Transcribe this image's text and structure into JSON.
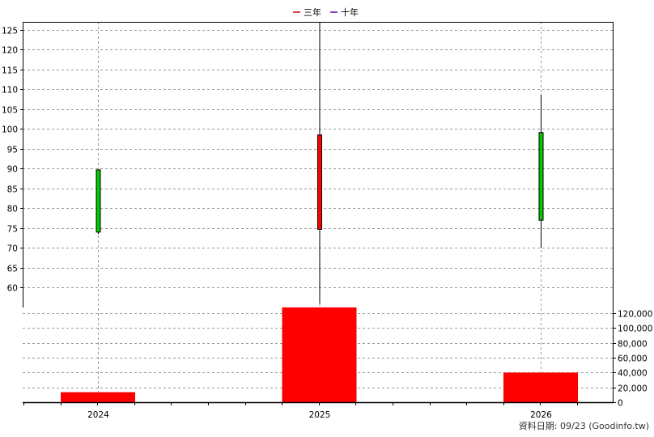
{
  "legend": [
    {
      "label": "三年",
      "color": "#d00000"
    },
    {
      "label": "十年",
      "color": "#6a00a8"
    }
  ],
  "footer_text": "資料日期: 09/23  (Goodinfo.tw)",
  "chart_data": [
    {
      "type": "candlestick",
      "categories": [
        "2024",
        "2025",
        "2026"
      ],
      "ylim": [
        55,
        127
      ],
      "yticks": [
        60,
        65,
        70,
        75,
        80,
        85,
        90,
        95,
        100,
        105,
        110,
        115,
        120,
        125
      ],
      "series": [
        {
          "values": [
            {
              "year": "2024",
              "open": 74,
              "high": 89.7,
              "low": 73.5,
              "close": 89.7,
              "color": "#00cc00"
            },
            {
              "year": "2025",
              "open": 98.5,
              "high": 126.8,
              "low": 56,
              "close": 74.7,
              "color": "#ff0000"
            },
            {
              "year": "2026",
              "open": 77,
              "high": 108.7,
              "low": 70,
              "close": 99.1,
              "color": "#00cc00"
            }
          ]
        }
      ]
    },
    {
      "type": "bar",
      "categories": [
        "2024",
        "2025",
        "2026"
      ],
      "values": [
        13500,
        128000,
        40000
      ],
      "ylim": [
        0,
        130000
      ],
      "yticks": [
        0,
        20000,
        40000,
        60000,
        80000,
        100000,
        120000
      ],
      "ytick_labels": [
        "0",
        "20,000",
        "40,000",
        "60,000",
        "80,000",
        "100,000",
        "120,000"
      ],
      "color": "#ff0000"
    }
  ]
}
